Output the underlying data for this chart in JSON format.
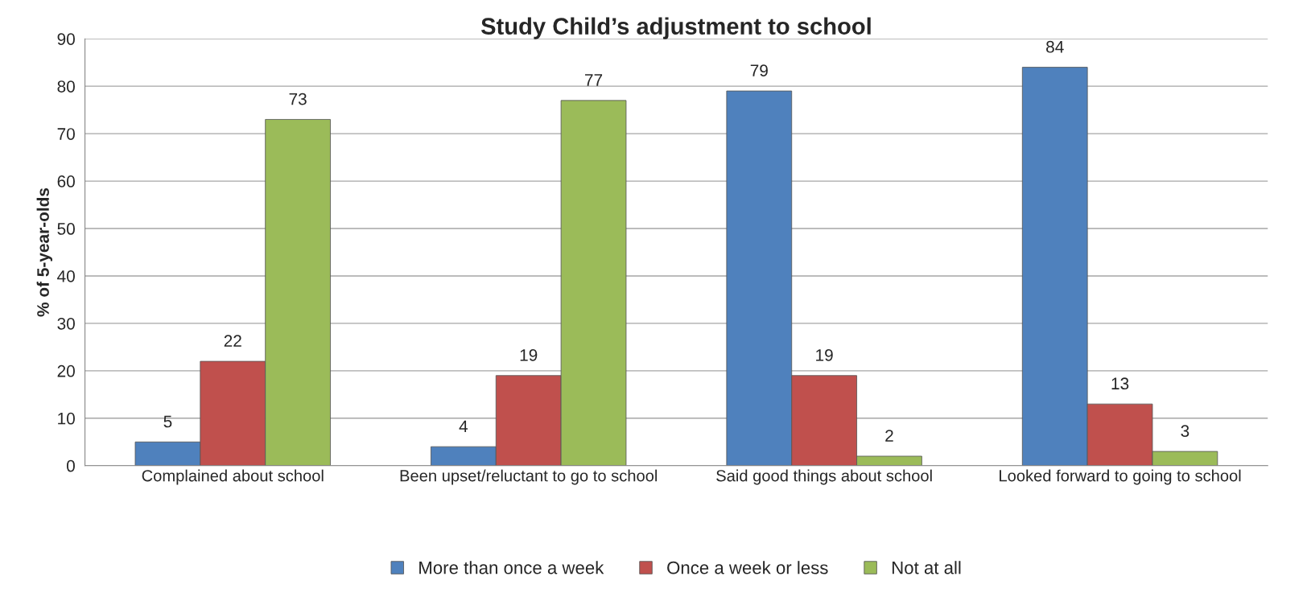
{
  "chart_data": {
    "type": "bar",
    "title": "Study Child’s adjustment to school",
    "ylabel": "% of 5-year-olds",
    "categories": [
      "Complained about school",
      "Been upset/reluctant to go to school",
      "Said good things about school",
      "Looked forward to going to school"
    ],
    "series": [
      {
        "name": "More than once a week",
        "color": "#4f81bd",
        "values": [
          5,
          4,
          79,
          84
        ]
      },
      {
        "name": "Once a week or less",
        "color": "#c0504d",
        "values": [
          22,
          19,
          19,
          13
        ]
      },
      {
        "name": "Not at all",
        "color": "#9bbb59",
        "values": [
          73,
          77,
          2,
          3
        ]
      }
    ],
    "ylim": [
      0,
      90
    ],
    "yticks": [
      0,
      10,
      20,
      30,
      40,
      50,
      60,
      70,
      80,
      90
    ],
    "grid": "y",
    "legend": "bottom",
    "data_labels": true
  }
}
